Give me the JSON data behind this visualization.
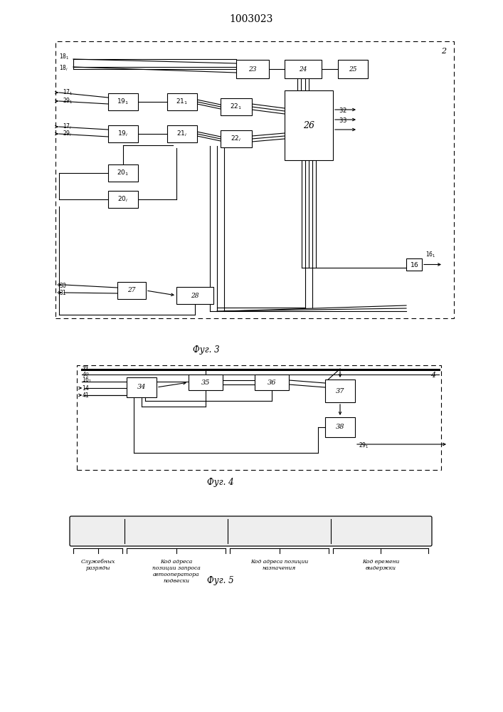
{
  "title": "1003023",
  "fig3_label": "Фуг. 3",
  "fig4_label": "Фуг. 4",
  "fig5_label": "Фуг. 5",
  "fig5_texts": [
    "Служебных\nразряды",
    "Код адреса\nпозиции запроса\nавтооператора\nподвески",
    "Код адреса позиции\nназначения",
    "Код времени\nвыдержки"
  ],
  "bg_color": "#ffffff",
  "box_color": "#000000",
  "line_color": "#000000"
}
